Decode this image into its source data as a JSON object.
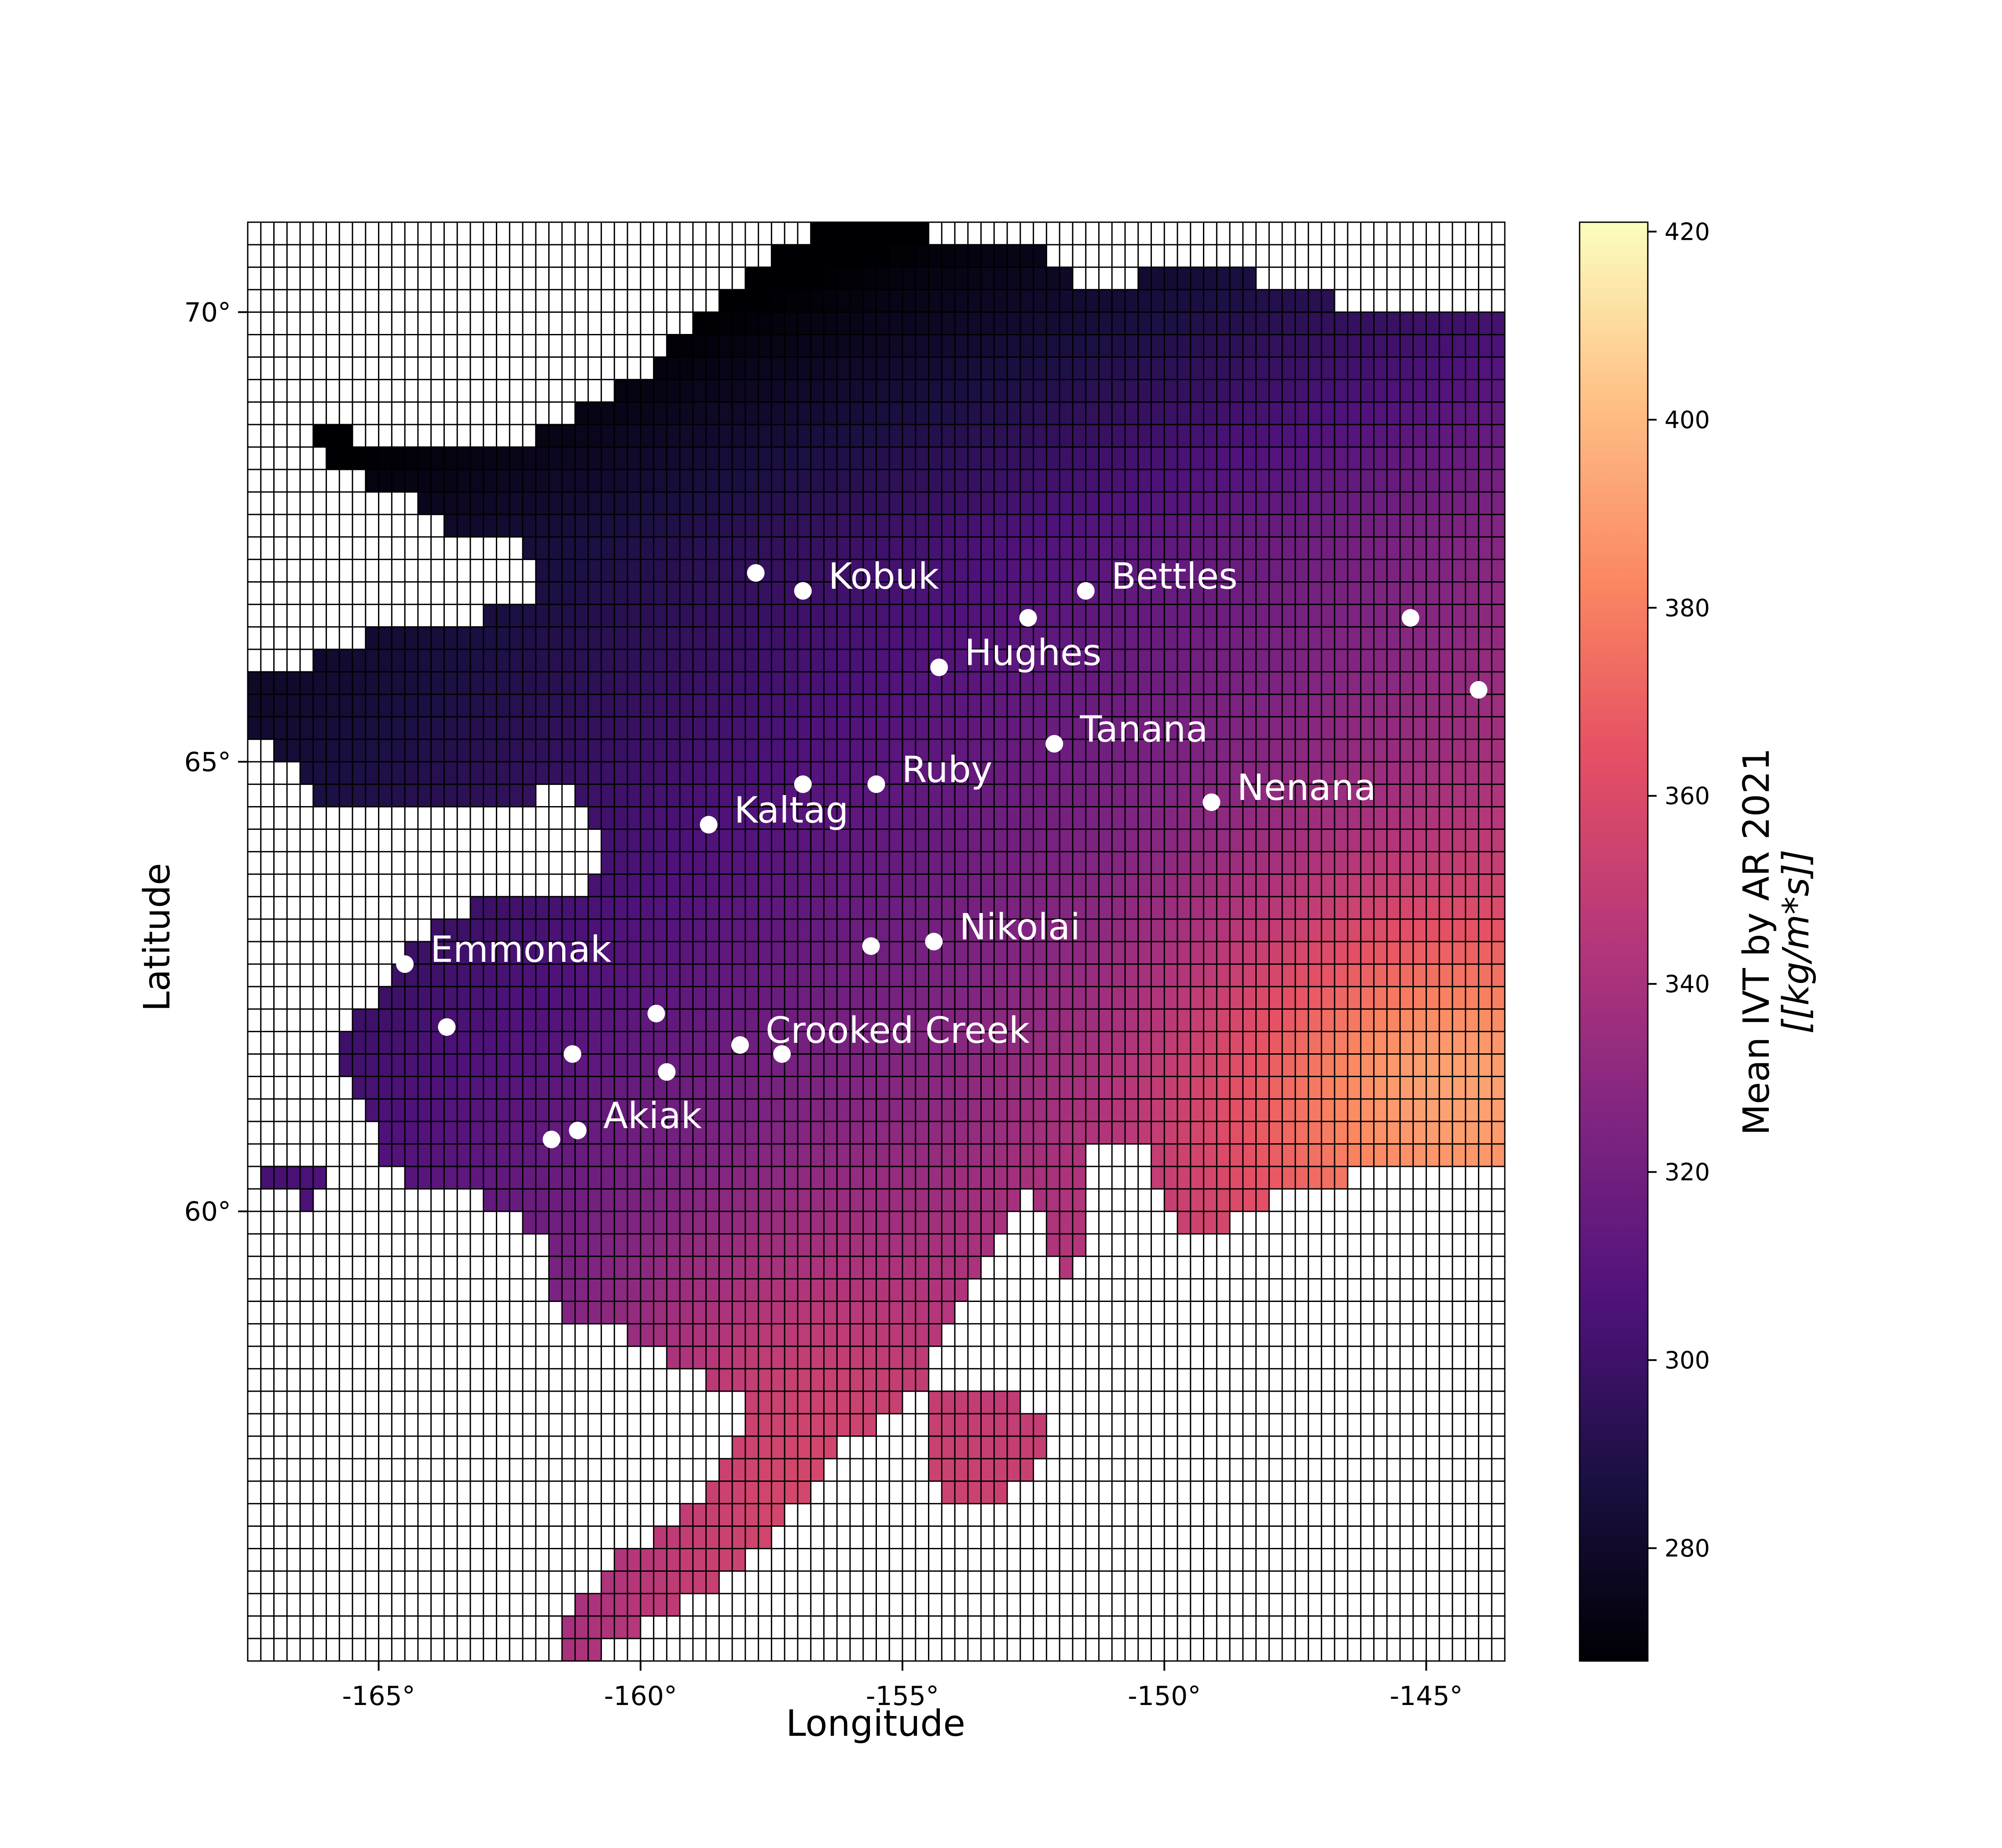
{
  "chart_data": {
    "type": "heatmap",
    "title": "",
    "xlabel": "Longitude",
    "ylabel": "Latitude",
    "xlim": [
      -167.5,
      -143.5
    ],
    "ylim": [
      55.0,
      71.0
    ],
    "x_ticks": [
      {
        "value": -165,
        "label": "-165°"
      },
      {
        "value": -160,
        "label": "-160°"
      },
      {
        "value": -155,
        "label": "-155°"
      },
      {
        "value": -150,
        "label": "-150°"
      },
      {
        "value": -145,
        "label": "-145°"
      }
    ],
    "y_ticks": [
      {
        "value": 60,
        "label": "60°"
      },
      {
        "value": 65,
        "label": "65°"
      },
      {
        "value": 70,
        "label": "70°"
      }
    ],
    "grid": true,
    "colorbar": {
      "label_line1": "Mean IVT by AR 2021",
      "label_line2": "[[kg/m*s]]",
      "colormap": "magma",
      "range": [
        268,
        421
      ],
      "ticks": [
        {
          "value": 280,
          "label": "280"
        },
        {
          "value": 300,
          "label": "300"
        },
        {
          "value": 320,
          "label": "320"
        },
        {
          "value": 340,
          "label": "340"
        },
        {
          "value": 360,
          "label": "360"
        },
        {
          "value": 380,
          "label": "380"
        },
        {
          "value": 400,
          "label": "400"
        },
        {
          "value": 420,
          "label": "420"
        }
      ]
    },
    "colors": {
      "marker": "#ffffff",
      "grid_line": "#000000",
      "ocean": "#ffffff"
    },
    "stations": [
      {
        "label": "Kobuk",
        "lon": -156.9,
        "lat": 66.9
      },
      {
        "label": "",
        "lon": -157.8,
        "lat": 67.1
      },
      {
        "label": "Bettles",
        "lon": -151.5,
        "lat": 66.9
      },
      {
        "label": "",
        "lon": -152.6,
        "lat": 66.6
      },
      {
        "label": "",
        "lon": -145.3,
        "lat": 66.6
      },
      {
        "label": "Hughes",
        "lon": -154.3,
        "lat": 66.05
      },
      {
        "label": "",
        "lon": -144.0,
        "lat": 65.8
      },
      {
        "label": "Tanana",
        "lon": -152.1,
        "lat": 65.2
      },
      {
        "label": "Ruby",
        "lon": -155.5,
        "lat": 64.75
      },
      {
        "label": "",
        "lon": -156.9,
        "lat": 64.75
      },
      {
        "label": "Nenana",
        "lon": -149.1,
        "lat": 64.55
      },
      {
        "label": "Kaltag",
        "lon": -158.7,
        "lat": 64.3
      },
      {
        "label": "Nikolai",
        "lon": -154.4,
        "lat": 63.0
      },
      {
        "label": "",
        "lon": -155.6,
        "lat": 62.95
      },
      {
        "label": "Emmonak",
        "lon": -164.5,
        "lat": 62.75
      },
      {
        "label": "",
        "lon": -163.7,
        "lat": 62.05
      },
      {
        "label": "",
        "lon": -159.7,
        "lat": 62.2
      },
      {
        "label": "Crooked Creek",
        "lon": -158.1,
        "lat": 61.85
      },
      {
        "label": "",
        "lon": -157.3,
        "lat": 61.75
      },
      {
        "label": "",
        "lon": -161.3,
        "lat": 61.75
      },
      {
        "label": "",
        "lon": -159.5,
        "lat": 61.55
      },
      {
        "label": "Akiak",
        "lon": -161.2,
        "lat": 60.9
      },
      {
        "label": "",
        "lon": -161.7,
        "lat": 60.8
      }
    ]
  }
}
